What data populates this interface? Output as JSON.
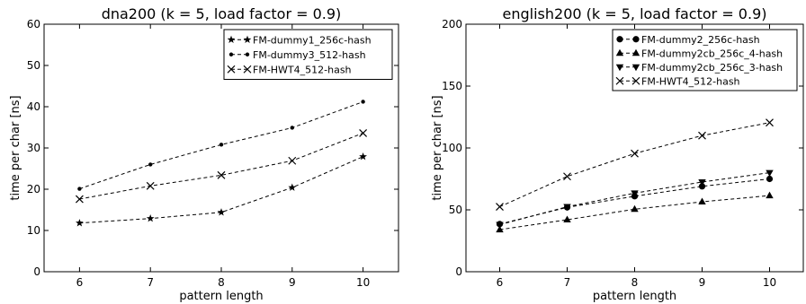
{
  "chart_data": [
    {
      "type": "line",
      "title": "dna200 (k = 5, load factor = 0.9)",
      "xlabel": "pattern length",
      "ylabel": "time per char [ns]",
      "xlim": [
        5.5,
        10.5
      ],
      "ylim": [
        0,
        60
      ],
      "x_ticks": [
        6,
        7,
        8,
        9,
        10
      ],
      "y_ticks": [
        0,
        10,
        20,
        30,
        40,
        50,
        60
      ],
      "legend_position": "top-right",
      "x": [
        6,
        7,
        8,
        9,
        10
      ],
      "series": [
        {
          "name": "FM-dummy1_256c-hash",
          "marker": "star",
          "values": [
            11.8,
            12.9,
            14.4,
            20.4,
            27.9
          ]
        },
        {
          "name": "FM-dummy3_512-hash",
          "marker": "dot",
          "values": [
            20.1,
            26.0,
            30.8,
            34.9,
            41.2
          ]
        },
        {
          "name": "FM-HWT4_512-hash",
          "marker": "x",
          "values": [
            17.6,
            20.8,
            23.4,
            26.9,
            33.6
          ]
        }
      ]
    },
    {
      "type": "line",
      "title": "english200 (k = 5, load factor = 0.9)",
      "xlabel": "pattern length",
      "ylabel": "time per char [ns]",
      "xlim": [
        5.5,
        10.5
      ],
      "ylim": [
        0,
        200
      ],
      "x_ticks": [
        6,
        7,
        8,
        9,
        10
      ],
      "y_ticks": [
        0,
        50,
        100,
        150,
        200
      ],
      "legend_position": "top-right",
      "x": [
        6,
        7,
        8,
        9,
        10
      ],
      "series": [
        {
          "name": "FM-dummy2_256c-hash",
          "marker": "circle",
          "values": [
            38.5,
            52.0,
            61.0,
            69.0,
            75.0
          ]
        },
        {
          "name": "FM-dummy2cb_256c_4-hash",
          "marker": "triangle-up",
          "values": [
            34.0,
            42.0,
            50.5,
            56.5,
            61.5
          ]
        },
        {
          "name": "FM-dummy2cb_256c_3-hash",
          "marker": "triangle-down",
          "values": [
            38.0,
            52.5,
            63.5,
            72.5,
            80.0
          ]
        },
        {
          "name": "FM-HWT4_512-hash",
          "marker": "x",
          "values": [
            52.5,
            77.0,
            95.5,
            110.0,
            120.5
          ]
        }
      ]
    }
  ]
}
